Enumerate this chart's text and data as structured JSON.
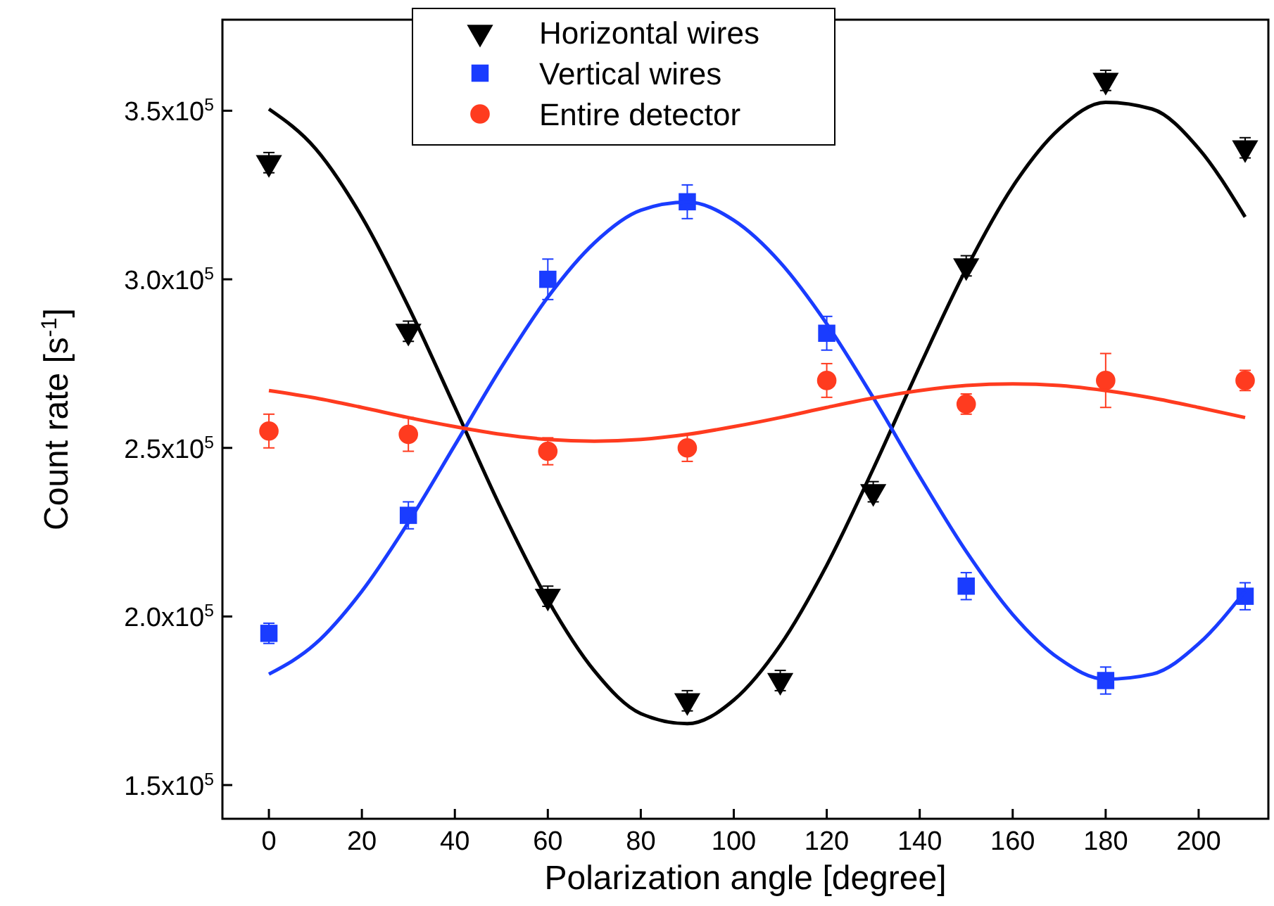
{
  "chart_data": {
    "type": "scatter",
    "xlabel": "Polarization angle [degree]",
    "ylabel": "Count rate [s$^{-1}$]",
    "xlim": [
      -10,
      215
    ],
    "ylim": [
      140000,
      377000
    ],
    "xticks": [
      0,
      20,
      40,
      60,
      80,
      100,
      120,
      140,
      160,
      180,
      200
    ],
    "yticks": [
      {
        "value": 150000,
        "label": "1.5x10$^{5}$"
      },
      {
        "value": 200000,
        "label": "2.0x10$^{5}$"
      },
      {
        "value": 250000,
        "label": "2.5x10$^{5}$"
      },
      {
        "value": 300000,
        "label": "3.0x10$^{5}$"
      },
      {
        "value": 350000,
        "label": "3.5x10$^{5}$"
      }
    ],
    "grid": false,
    "legend": "top",
    "series": [
      {
        "name": "Horizontal wires",
        "color": "#000000",
        "marker": "triangle",
        "x": [
          0,
          30,
          60,
          90,
          110,
          130,
          150,
          180,
          210
        ],
        "values": [
          334600,
          284600,
          206000,
          175000,
          181000,
          237000,
          304000,
          359000,
          339000
        ],
        "errors": [
          3000,
          3000,
          3000,
          3000,
          3000,
          3000,
          3000,
          3000,
          3000
        ]
      },
      {
        "name": "Vertical wires",
        "color": "#1a3cff",
        "marker": "square",
        "x": [
          0,
          30,
          60,
          90,
          120,
          150,
          180,
          210
        ],
        "values": [
          195000,
          230000,
          300000,
          323000,
          284000,
          209000,
          181000,
          206000
        ],
        "errors": [
          3000,
          4000,
          6000,
          5000,
          5000,
          4000,
          4000,
          4000
        ]
      },
      {
        "name": "Entire detector",
        "color": "#ff3b1f",
        "marker": "circle",
        "x": [
          0,
          30,
          60,
          90,
          120,
          150,
          180,
          210
        ],
        "values": [
          255000,
          254000,
          249000,
          250000,
          270000,
          263000,
          270000,
          270000
        ],
        "errors": [
          5000,
          5000,
          4000,
          4000,
          5000,
          3000,
          8000,
          3000
        ]
      },
      {
        "type": "line",
        "color": "#000000",
        "x": [
          0,
          10,
          20,
          30,
          40,
          50,
          60,
          70,
          80,
          90,
          100,
          110,
          120,
          130,
          140,
          150,
          160,
          170,
          180,
          190,
          200,
          210
        ],
        "values": [
          350500,
          338800,
          318500,
          291900,
          262100,
          231900,
          204900,
          183900,
          171200,
          168200,
          175200,
          191500,
          215200,
          243800,
          274200,
          303100,
          327500,
          344600,
          352500,
          350500,
          338800,
          318500
        ]
      },
      {
        "type": "line",
        "color": "#1a3cff",
        "x": [
          0,
          10,
          20,
          30,
          40,
          50,
          60,
          70,
          80,
          90,
          100,
          110,
          120,
          130,
          140,
          150,
          160,
          170,
          180,
          190,
          200,
          210
        ],
        "values": [
          182900,
          191900,
          207500,
          227900,
          250800,
          273900,
          294700,
          310800,
          320500,
          322900,
          317500,
          305000,
          286800,
          264900,
          241500,
          219300,
          200600,
          187500,
          181400,
          182900,
          191900,
          207500
        ]
      },
      {
        "type": "line",
        "color": "#ff3b1f",
        "x": [
          0,
          10,
          20,
          30,
          40,
          50,
          60,
          70,
          80,
          90,
          100,
          110,
          120,
          130,
          140,
          150,
          160,
          170,
          180,
          190,
          200,
          210
        ],
        "values": [
          267000,
          264800,
          262000,
          259000,
          256300,
          254000,
          252500,
          252000,
          252500,
          254000,
          256300,
          259000,
          262000,
          264800,
          267000,
          268500,
          269000,
          268500,
          267000,
          264800,
          262000,
          259000
        ]
      }
    ]
  }
}
